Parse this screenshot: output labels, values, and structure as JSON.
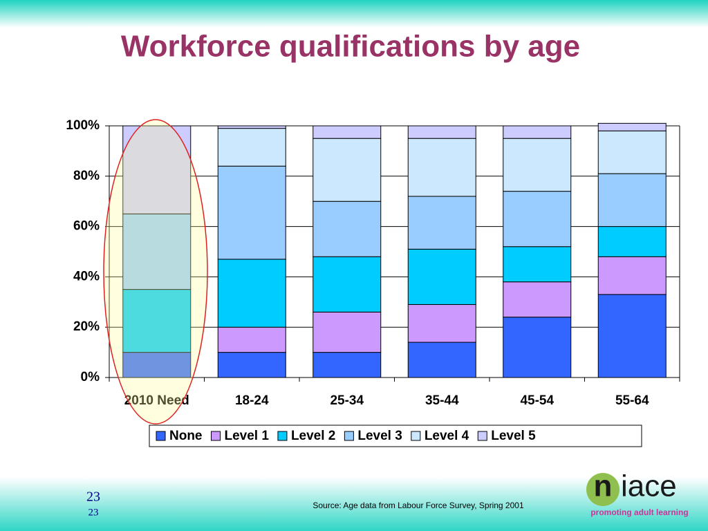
{
  "chart_data": {
    "type": "stacked_bar",
    "title": "Workforce qualifications by age",
    "categories": [
      "2010 Need",
      "18-24",
      "25-34",
      "35-44",
      "45-54",
      "55-64"
    ],
    "series": [
      {
        "name": "None",
        "color": "#3366ff",
        "values": [
          10,
          10,
          10,
          14,
          24,
          33
        ]
      },
      {
        "name": "Level 1",
        "color": "#cc99ff",
        "values": [
          0,
          10,
          16,
          15,
          14,
          15
        ]
      },
      {
        "name": "Level 2",
        "color": "#00ccff",
        "values": [
          25,
          27,
          22,
          22,
          14,
          12
        ]
      },
      {
        "name": "Level 3",
        "color": "#99ccff",
        "values": [
          30,
          37,
          22,
          21,
          22,
          21
        ]
      },
      {
        "name": "Level 4",
        "color": "#cce8ff",
        "values": [
          0,
          15,
          25,
          23,
          21,
          17
        ]
      },
      {
        "name": "Level 5",
        "color": "#ccccff",
        "values": [
          35,
          1,
          5,
          5,
          5,
          3
        ]
      }
    ],
    "ylim": [
      0,
      100
    ],
    "yticks": [
      {
        "value": 0,
        "label": "0%"
      },
      {
        "value": 20,
        "label": "20%"
      },
      {
        "value": 40,
        "label": "40%"
      },
      {
        "value": 60,
        "label": "60%"
      },
      {
        "value": 80,
        "label": "80%"
      },
      {
        "value": 100,
        "label": "100%"
      }
    ],
    "grid": true,
    "legend": "bottom"
  },
  "slide_number": "23",
  "slide_number_small": "23",
  "source": "Source:  Age data from Labour Force Survey, Spring 2001",
  "logo": {
    "n": "n",
    "rest": "iace",
    "tagline": "promoting adult learning"
  }
}
